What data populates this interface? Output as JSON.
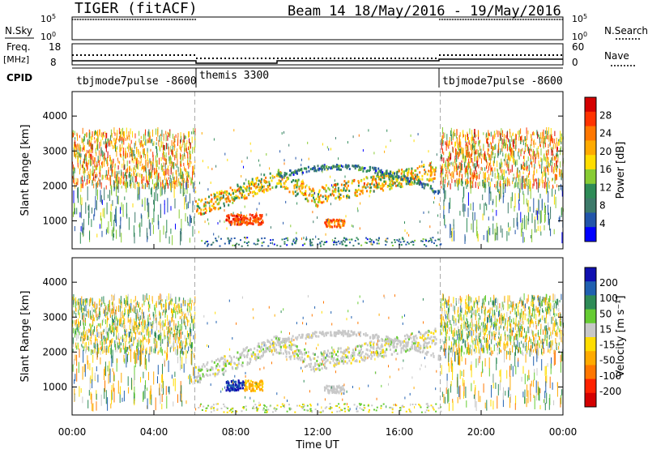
{
  "header": {
    "radar": "TIGER (fitACF)",
    "beam_date": "Beam 14  18/May/2016 - 19/May/2016"
  },
  "top_panels": {
    "nsky_label": "N.Sky",
    "nsky_ticks_left": [
      "10^5",
      "10^0"
    ],
    "nsky_ticks_right": [
      "10^5",
      "10^0"
    ],
    "nsearch_label": "N.Search",
    "freq_label": "Freq.",
    "freq_unit": "[MHz]",
    "freq_ticks": [
      "18",
      "8"
    ],
    "nave_ticks": [
      "60",
      "0"
    ],
    "nave_label": "Nave",
    "cpid_label": "CPID",
    "cpid_segments": [
      {
        "name": "tbjmode7pulse -8600",
        "start_hour": 0,
        "end_hour": 6
      },
      {
        "name": "themis 3300",
        "start_hour": 6,
        "end_hour": 18
      },
      {
        "name": "tbjmode7pulse -8600",
        "start_hour": 18,
        "end_hour": 24
      }
    ]
  },
  "axes": {
    "xlabel": "Time UT",
    "x_ticks": [
      "00:00",
      "04:00",
      "08:00",
      "12:00",
      "16:00",
      "20:00",
      "00:00"
    ],
    "ylabel": "Slant Range [km]",
    "y_ticks": [
      "1000",
      "2000",
      "3000",
      "4000"
    ]
  },
  "colorbars": {
    "power": {
      "label": "Power [dB]",
      "ticks": [
        "28",
        "24",
        "20",
        "16",
        "12",
        "8",
        "4"
      ],
      "colors": [
        "#d40000",
        "#ff3300",
        "#ff7700",
        "#ffaa00",
        "#ffdd00",
        "#88cc33",
        "#2e8b57",
        "#3d7a6a",
        "#2255aa",
        "#0000ff"
      ]
    },
    "velocity": {
      "label": "Velocity [m s⁻¹]",
      "ticks": [
        "200",
        "100",
        "50",
        "15",
        "-15",
        "-50",
        "-100",
        "-200"
      ],
      "colors": [
        "#1010b0",
        "#2060b0",
        "#2e8b57",
        "#66cc33",
        "#c8c8c8",
        "#ffdd00",
        "#ffaa00",
        "#ff7700",
        "#ff2200",
        "#d40000"
      ]
    }
  },
  "chart_data": [
    {
      "type": "heatmap",
      "title": "Power",
      "x_range_hours": [
        0,
        24
      ],
      "ylim": [
        200,
        4700
      ],
      "ylabel": "Slant Range [km]",
      "colorbar_label": "Power [dB]",
      "features": [
        {
          "desc": "dense scatter 0-6 UT",
          "x": [
            0,
            6
          ],
          "y": [
            1900,
            3500
          ],
          "power_db": 26
        },
        {
          "desc": "dense scatter 18-24 UT",
          "x": [
            18,
            24
          ],
          "y": [
            1900,
            3500
          ],
          "power_db": 22
        },
        {
          "desc": "ionospheric band",
          "x": [
            6,
            17.8
          ],
          "y": [
            1100,
            2500
          ],
          "power_db": 20
        },
        {
          "desc": "strong echo",
          "x": [
            7.5,
            9.3
          ],
          "y": [
            850,
            1150
          ],
          "power_db": 28
        },
        {
          "desc": "strong echo",
          "x": [
            12.3,
            13.3
          ],
          "y": [
            800,
            1000
          ],
          "power_db": 26
        }
      ]
    },
    {
      "type": "heatmap",
      "title": "Velocity",
      "x_range_hours": [
        0,
        24
      ],
      "ylim": [
        200,
        4700
      ],
      "ylabel": "Slant Range [km]",
      "colorbar_label": "Velocity [m s-1]",
      "features": [
        {
          "desc": "low velocity band",
          "x": [
            6,
            17.8
          ],
          "y": [
            1200,
            2200
          ],
          "velocity": 0
        },
        {
          "desc": "strong positive velocity echo",
          "x": [
            7.5,
            8.5
          ],
          "y": [
            900,
            1100
          ],
          "velocity": 200
        },
        {
          "desc": "negative velocity echo",
          "x": [
            8.3,
            9.3
          ],
          "y": [
            800,
            1000
          ],
          "velocity": -60
        }
      ]
    }
  ]
}
